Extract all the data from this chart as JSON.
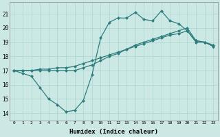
{
  "xlabel": "Humidex (Indice chaleur)",
  "bg_color": "#cce8e4",
  "grid_color": "#aad4d0",
  "line_color": "#2d7d7d",
  "xlim": [
    -0.5,
    23.5
  ],
  "ylim": [
    13.5,
    21.8
  ],
  "yticks": [
    14,
    15,
    16,
    17,
    18,
    19,
    20,
    21
  ],
  "xticks": [
    0,
    1,
    2,
    3,
    4,
    5,
    6,
    7,
    8,
    9,
    10,
    11,
    12,
    13,
    14,
    15,
    16,
    17,
    18,
    19,
    20,
    21,
    22,
    23
  ],
  "line1_x": [
    0,
    1,
    2,
    3,
    4,
    5,
    6,
    7,
    8,
    9,
    10,
    11,
    12,
    13,
    14,
    15,
    16,
    17,
    18,
    19,
    20,
    21,
    22,
    23
  ],
  "line1_y": [
    17.0,
    16.8,
    16.6,
    15.8,
    15.0,
    14.6,
    14.1,
    14.2,
    14.9,
    16.7,
    19.3,
    20.4,
    20.7,
    20.7,
    21.1,
    20.6,
    20.5,
    21.2,
    20.5,
    20.3,
    19.8,
    19.0,
    19.0,
    18.7
  ],
  "line2_x": [
    0,
    1,
    2,
    3,
    4,
    5,
    6,
    7,
    8,
    9,
    10,
    11,
    12,
    13,
    14,
    15,
    16,
    17,
    18,
    19,
    20,
    21,
    22,
    23
  ],
  "line2_y": [
    17.0,
    17.0,
    17.0,
    17.1,
    17.1,
    17.2,
    17.2,
    17.3,
    17.5,
    17.7,
    17.9,
    18.1,
    18.3,
    18.5,
    18.7,
    18.9,
    19.1,
    19.3,
    19.5,
    19.6,
    19.8,
    19.1,
    19.0,
    18.8
  ],
  "line3_x": [
    0,
    1,
    2,
    3,
    4,
    5,
    6,
    7,
    8,
    9,
    10,
    11,
    12,
    13,
    14,
    15,
    16,
    17,
    18,
    19,
    20,
    21,
    22,
    23
  ],
  "line3_y": [
    17.0,
    17.0,
    17.0,
    17.0,
    17.0,
    17.0,
    17.0,
    17.0,
    17.2,
    17.4,
    17.7,
    18.0,
    18.2,
    18.5,
    18.8,
    19.0,
    19.2,
    19.4,
    19.6,
    19.8,
    20.0,
    19.1,
    19.0,
    18.7
  ]
}
